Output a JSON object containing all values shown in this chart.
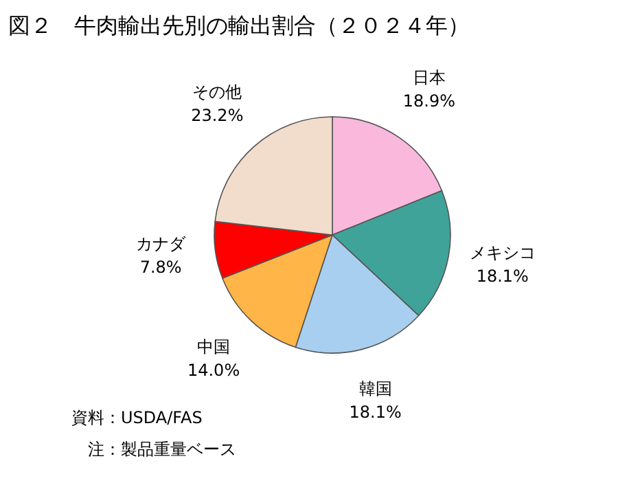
{
  "chart_data": {
    "type": "pie",
    "title": "図２　牛肉輸出先別の輸出割合（２０２４年）",
    "categories": [
      "日本",
      "メキシコ",
      "韓国",
      "中国",
      "カナダ",
      "その他"
    ],
    "values": [
      18.9,
      18.1,
      18.1,
      14.0,
      7.8,
      23.2
    ],
    "value_labels": [
      "18.9%",
      "18.1%",
      "18.1%",
      "14.0%",
      "7.8%",
      "23.2%"
    ],
    "colors": [
      "#f9b8dc",
      "#3fa39a",
      "#a8cff0",
      "#ffb547",
      "#ff0000",
      "#f2dccb"
    ],
    "annotations": [
      "資料：USDA/FAS",
      "注：製品重量ベース"
    ]
  }
}
